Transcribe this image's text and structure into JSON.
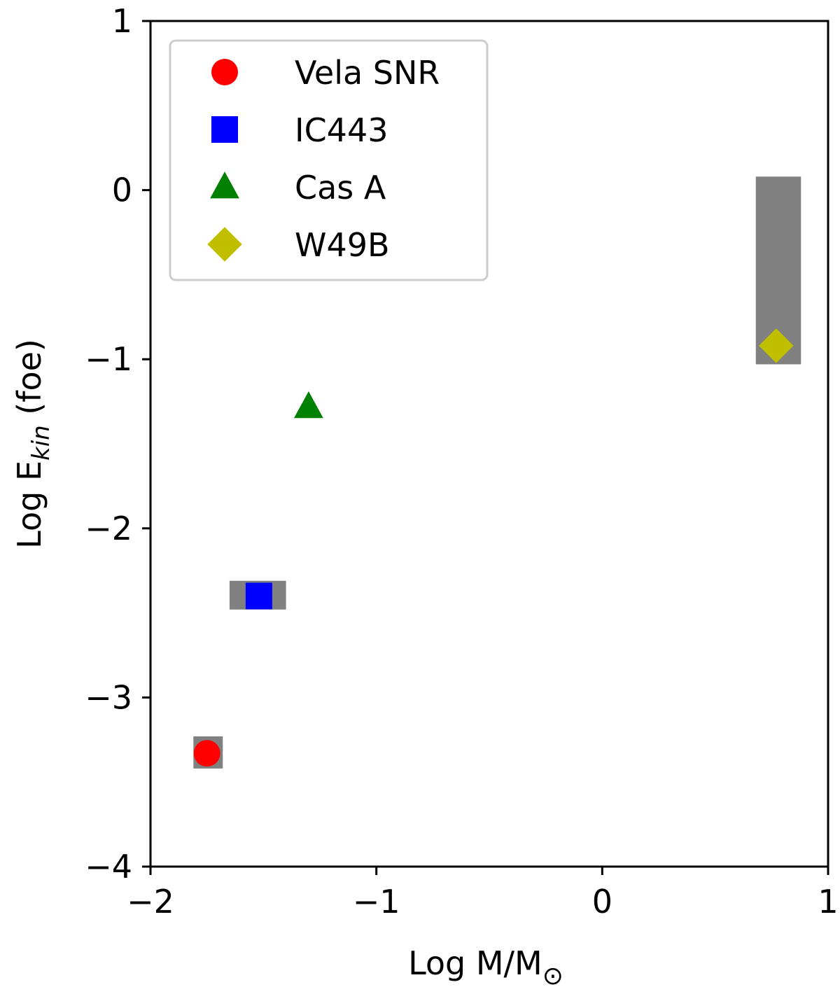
{
  "chart_data": {
    "type": "scatter",
    "title": "",
    "xlabel": "Log M/M",
    "xlabel_subscript": "⊙",
    "ylabel": "Log E",
    "ylabel_subscript": "kin",
    "ylabel_suffix": " (foe)",
    "xlim": [
      -2,
      1
    ],
    "ylim": [
      -4,
      1
    ],
    "xticks": [
      -2,
      -1,
      0,
      1
    ],
    "yticks": [
      -4,
      -3,
      -2,
      -1,
      0,
      1
    ],
    "xtick_labels": [
      "−2",
      "−1",
      "0",
      "1"
    ],
    "ytick_labels": [
      "−4",
      "−3",
      "−2",
      "−1",
      "0",
      "1"
    ],
    "grid": false,
    "legend_position": "top-left",
    "series": [
      {
        "name": "Vela SNR",
        "marker": "circle",
        "color": "#ff0000",
        "x": -1.75,
        "y": -3.33
      },
      {
        "name": "IC443",
        "marker": "square",
        "color": "#0000ff",
        "x": -1.52,
        "y": -2.4
      },
      {
        "name": "Cas A",
        "marker": "triangle",
        "color": "#008000",
        "x": -1.3,
        "y": -1.28
      },
      {
        "name": "W49B",
        "marker": "diamond",
        "color": "#bfbf00",
        "x": 0.77,
        "y": -0.92
      }
    ],
    "uncertainty_boxes": [
      {
        "x0": -1.81,
        "x1": -1.68,
        "y0": -3.42,
        "y1": -3.23,
        "color": "#808080"
      },
      {
        "x0": -1.65,
        "x1": -1.4,
        "y0": -2.48,
        "y1": -2.31,
        "color": "#808080"
      },
      {
        "x0": 0.68,
        "x1": 0.88,
        "y0": -1.03,
        "y1": 0.08,
        "color": "#808080"
      }
    ]
  }
}
